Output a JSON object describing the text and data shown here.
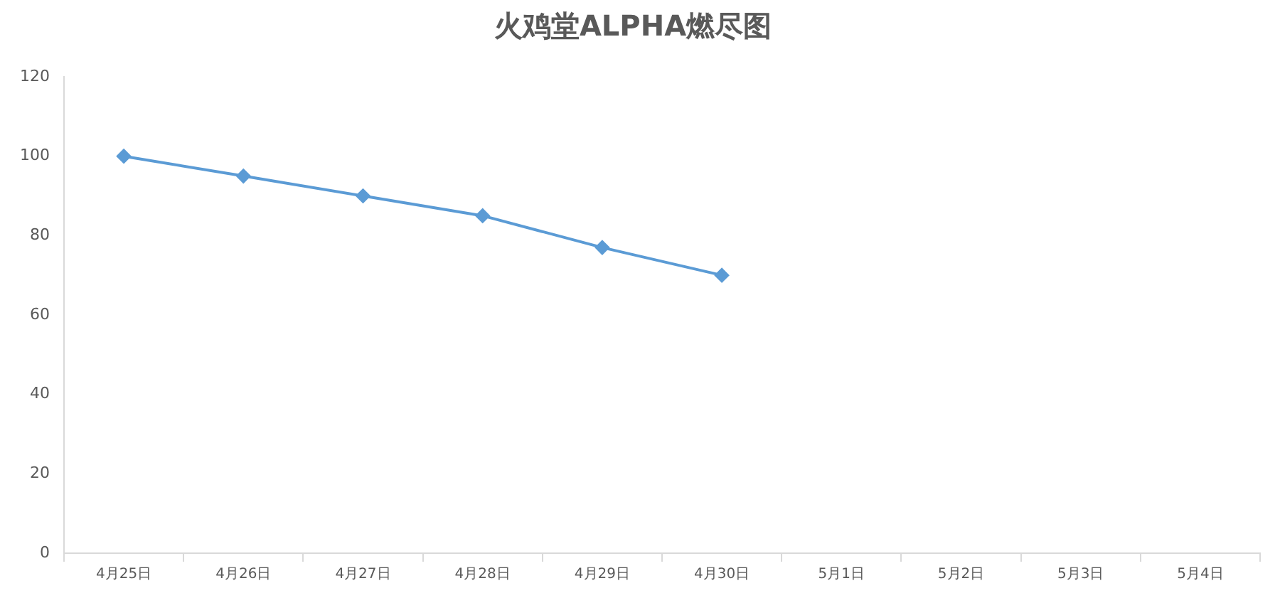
{
  "chart_data": {
    "type": "line",
    "title": "火鸡堂ALPHA燃尽图",
    "categories": [
      "4月25日",
      "4月26日",
      "4月27日",
      "4月28日",
      "4月29日",
      "4月30日",
      "5月1日",
      "5月2日",
      "5月3日",
      "5月4日"
    ],
    "series": [
      {
        "color": "#5b9bd5",
        "values": [
          100,
          95,
          90,
          85,
          77,
          70,
          null,
          null,
          null,
          null
        ]
      }
    ],
    "ylim": [
      0,
      120
    ],
    "yticks": [
      0,
      20,
      40,
      60,
      80,
      100,
      120
    ],
    "grid": false,
    "legend": false,
    "marker": "diamond",
    "line_style": "solid"
  }
}
